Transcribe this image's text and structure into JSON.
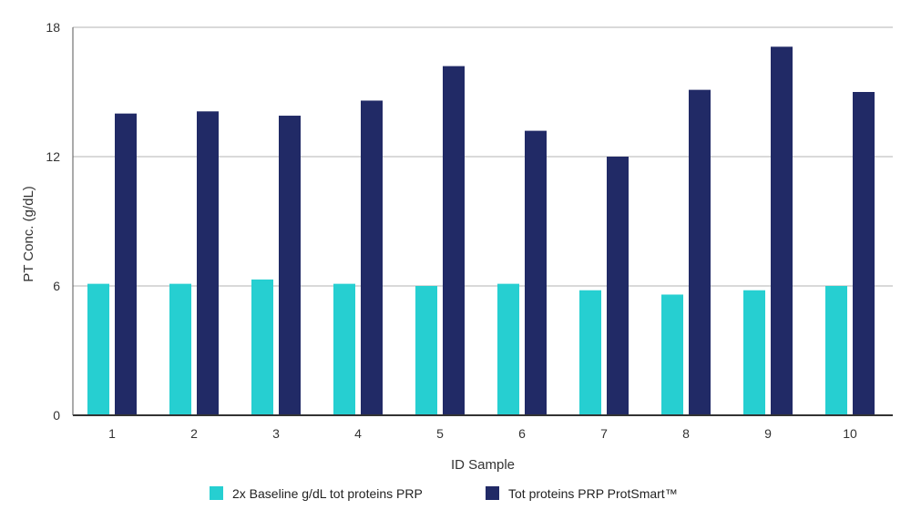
{
  "chart_data": {
    "type": "bar",
    "title": "",
    "xlabel": "ID Sample",
    "ylabel": "PT Conc. (g/dL)",
    "ylim": [
      0,
      18
    ],
    "yticks": [
      0,
      6,
      12,
      18
    ],
    "grid": true,
    "legend_position": "bottom-center",
    "categories": [
      "1",
      "2",
      "3",
      "4",
      "5",
      "6",
      "7",
      "8",
      "9",
      "10"
    ],
    "series": [
      {
        "name": "2x Baseline g/dL tot proteins PRP",
        "color": "#26cfd1",
        "values": [
          6.1,
          6.1,
          6.3,
          6.1,
          6.0,
          6.1,
          5.8,
          5.6,
          5.8,
          6.0
        ]
      },
      {
        "name": "Tot proteins PRP ProtSmart™",
        "color": "#212a66",
        "values": [
          14.0,
          14.1,
          13.9,
          14.6,
          16.2,
          13.2,
          12.0,
          15.1,
          17.1,
          15.0
        ]
      }
    ]
  }
}
